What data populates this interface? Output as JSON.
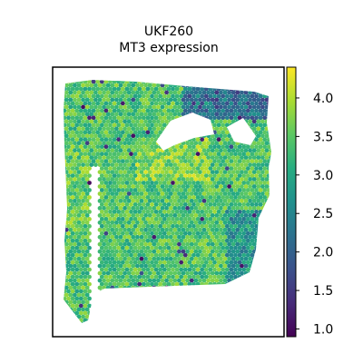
{
  "chart_data": {
    "type": "heatmap",
    "title": "UKF260",
    "subtitle": "MT3 expression",
    "xlabel": "",
    "ylabel": "",
    "grid": false,
    "colorbar": {
      "colormap": "viridis",
      "range": [
        0.9,
        4.4
      ],
      "ticks": [
        1.0,
        1.5,
        2.0,
        2.5,
        3.0,
        3.5,
        4.0
      ],
      "tick_labels": [
        "1.0",
        "1.5",
        "2.0",
        "2.5",
        "3.0",
        "3.5",
        "4.0"
      ],
      "position": "right"
    },
    "typical_value": 3.4
  }
}
